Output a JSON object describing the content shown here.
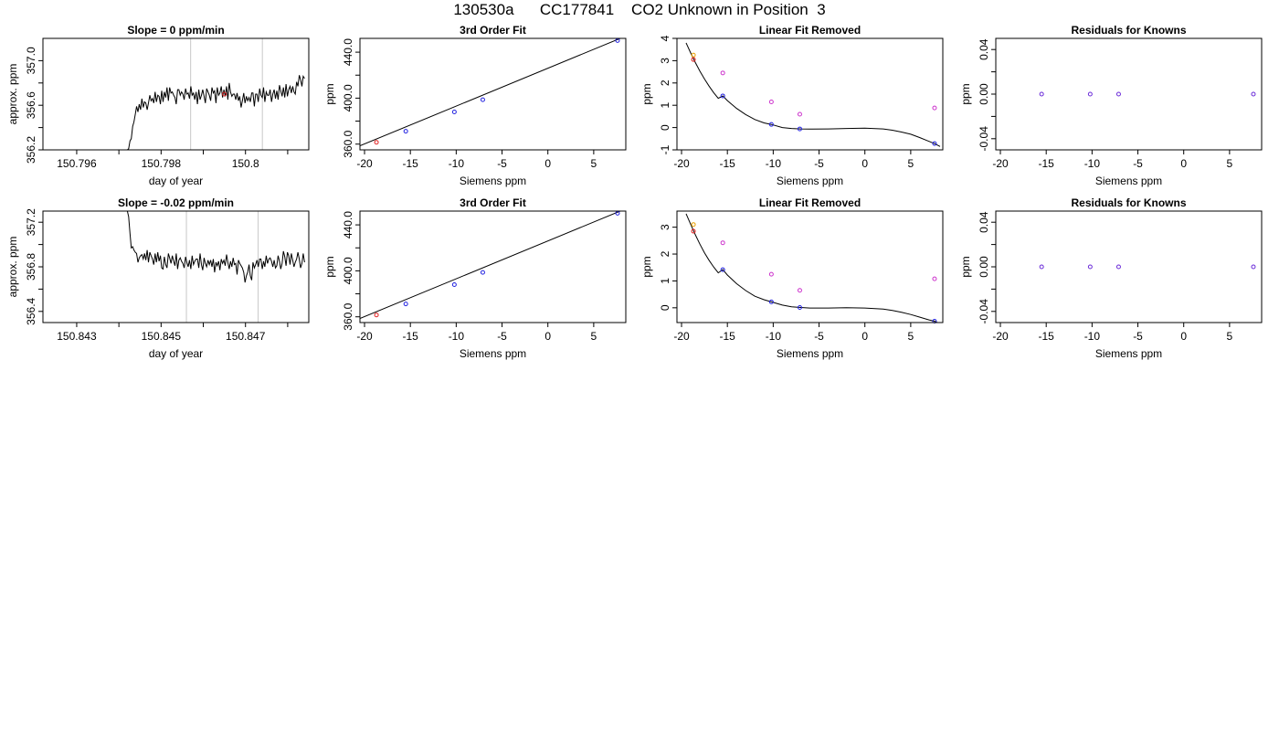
{
  "title": "130530a      CC177841    CO2 Unknown in Position  3",
  "chart_data": [
    {
      "type": "line",
      "panel": "time-series",
      "row": 0,
      "title": "Slope =  0  ppm/min",
      "xlabel": "day of year",
      "ylabel": "approx. ppm",
      "xlim": [
        150.7952,
        150.8015
      ],
      "ylim": [
        356.2,
        357.2
      ],
      "xticks": [
        150.796,
        150.798,
        150.8
      ],
      "xminor": [
        150.797,
        150.799,
        150.801
      ],
      "yticks": [
        356.2,
        356.6,
        357.0
      ],
      "yminor": [
        356.4,
        356.8
      ],
      "vlines": [
        150.7987,
        150.8004
      ],
      "marker": {
        "x": 150.7995,
        "y": 356.7,
        "color": "#e02020"
      },
      "series": [
        {
          "x_start": 150.7972,
          "x_end": 150.8014,
          "values": [
            356.2,
            356.21,
            356.28,
            356.3,
            356.41,
            356.45,
            356.52,
            356.59,
            356.54,
            356.61,
            356.56,
            356.66,
            356.58,
            356.63,
            356.62,
            356.56,
            356.62,
            356.69,
            356.64,
            356.66,
            356.62,
            356.72,
            356.63,
            356.69,
            356.68,
            356.61,
            356.73,
            356.63,
            356.72,
            356.67,
            356.76,
            356.64,
            356.76,
            356.71,
            356.72,
            356.69,
            356.67,
            356.61,
            356.74,
            356.74,
            356.69,
            356.72,
            356.7,
            356.65,
            356.75,
            356.7,
            356.71,
            356.66,
            356.77,
            356.69,
            356.71,
            356.65,
            356.72,
            356.61,
            356.74,
            356.65,
            356.69,
            356.74,
            356.68,
            356.62,
            356.75,
            356.72,
            356.69,
            356.64,
            356.76,
            356.71,
            356.73,
            356.62,
            356.76,
            356.69,
            356.71,
            356.77,
            356.67,
            356.74,
            356.68,
            356.77,
            356.65,
            356.8,
            356.72,
            356.68,
            356.7,
            356.7,
            356.65,
            356.71,
            356.64,
            356.68,
            356.58,
            356.64,
            356.71,
            356.62,
            356.68,
            356.64,
            356.67,
            356.63,
            356.71,
            356.71,
            356.59,
            356.7,
            356.7,
            356.63,
            356.75,
            356.69,
            356.67,
            356.76,
            356.63,
            356.72,
            356.69,
            356.69,
            356.74,
            356.63,
            356.7,
            356.74,
            356.66,
            356.73,
            356.65,
            356.78,
            356.73,
            356.68,
            356.76,
            356.67,
            356.79,
            356.68,
            356.74,
            356.77,
            356.71,
            356.77,
            356.72,
            356.7,
            356.81,
            356.77,
            356.87,
            356.83,
            356.77,
            356.86,
            356.84
          ]
        }
      ]
    },
    {
      "type": "scatter",
      "panel": "fit",
      "row": 0,
      "title": "3rd Order Fit",
      "xlabel": "Siemens ppm",
      "ylabel": "ppm",
      "xlim": [
        -20.5,
        8.5
      ],
      "ylim": [
        355,
        452
      ],
      "xticks": [
        -20,
        -15,
        -10,
        -5,
        0,
        5
      ],
      "yticks": [
        360,
        400,
        440
      ],
      "yminor": [
        380,
        420
      ],
      "fit": [
        [
          -20.5,
          358.5
        ],
        [
          8.5,
          454
        ]
      ],
      "points": [
        {
          "x": -18.7,
          "y": 361.6,
          "color": "#e02020"
        },
        {
          "x": -15.5,
          "y": 371.2,
          "color": "#2020e0"
        },
        {
          "x": -10.2,
          "y": 388.0,
          "color": "#2020e0"
        },
        {
          "x": -7.1,
          "y": 398.6,
          "color": "#2020e0"
        },
        {
          "x": 7.6,
          "y": 450.1,
          "color": "#2020e0"
        }
      ]
    },
    {
      "type": "scatter",
      "panel": "residual-curve",
      "row": 0,
      "title": "Linear Fit Removed",
      "xlabel": "Siemens ppm",
      "ylabel": "ppm",
      "xlim": [
        -20.5,
        8.5
      ],
      "ylim": [
        -1,
        4
      ],
      "xticks": [
        -20,
        -15,
        -10,
        -5,
        0,
        5
      ],
      "yticks": [
        -1,
        0,
        1,
        2,
        3,
        4
      ],
      "curve": [
        [
          -19.5,
          3.8
        ],
        [
          -19,
          3.34
        ],
        [
          -18.5,
          2.92
        ],
        [
          -18,
          2.53
        ],
        [
          -17.5,
          2.18
        ],
        [
          -17,
          1.86
        ],
        [
          -16.5,
          1.57
        ],
        [
          -16,
          1.31
        ],
        [
          -15.5,
          1.42
        ],
        [
          -15,
          1.21
        ],
        [
          -14,
          0.86
        ],
        [
          -13,
          0.58
        ],
        [
          -12,
          0.36
        ],
        [
          -11,
          0.21
        ],
        [
          -10.2,
          0.14
        ],
        [
          -9,
          0.0
        ],
        [
          -8,
          -0.04
        ],
        [
          -7,
          -0.06
        ],
        [
          -6,
          -0.07
        ],
        [
          -4,
          -0.06
        ],
        [
          -2,
          -0.04
        ],
        [
          0,
          -0.03
        ],
        [
          2,
          -0.06
        ],
        [
          3,
          -0.12
        ],
        [
          4,
          -0.2
        ],
        [
          5,
          -0.3
        ],
        [
          6,
          -0.45
        ],
        [
          7,
          -0.62
        ],
        [
          7.6,
          -0.72
        ],
        [
          8.2,
          -0.85
        ]
      ],
      "points": [
        {
          "x": -18.7,
          "y": 3.25,
          "color": "#e8a000"
        },
        {
          "x": -18.7,
          "y": 3.05,
          "color": "#e02020"
        },
        {
          "x": -15.5,
          "y": 2.45,
          "color": "#cc33cc"
        },
        {
          "x": -15.5,
          "y": 1.42,
          "color": "#2020e0"
        },
        {
          "x": -10.2,
          "y": 1.15,
          "color": "#cc33cc"
        },
        {
          "x": -10.2,
          "y": 0.14,
          "color": "#2020e0"
        },
        {
          "x": -7.1,
          "y": 0.6,
          "color": "#cc33cc"
        },
        {
          "x": -7.1,
          "y": -0.06,
          "color": "#2020e0"
        },
        {
          "x": 7.6,
          "y": 0.88,
          "color": "#cc33cc"
        },
        {
          "x": 7.6,
          "y": -0.72,
          "color": "#2020e0"
        }
      ]
    },
    {
      "type": "scatter",
      "panel": "residuals",
      "row": 0,
      "title": "Residuals for Knowns",
      "xlabel": "Siemens ppm",
      "ylabel": "ppm",
      "xlim": [
        -20.5,
        8.5
      ],
      "ylim": [
        -0.05,
        0.05
      ],
      "xticks": [
        -20,
        -15,
        -10,
        -5,
        0,
        5
      ],
      "yticks": [
        -0.04,
        0.0,
        0.04
      ],
      "yminor": [
        -0.02,
        0.02
      ],
      "yticklabels": [
        "-0.04",
        "0.00",
        "0.04"
      ],
      "points": [
        {
          "x": -15.5,
          "y": 0.0,
          "color": "#6a2ad8"
        },
        {
          "x": -10.2,
          "y": 0.0,
          "color": "#6a2ad8"
        },
        {
          "x": -7.1,
          "y": 0.0,
          "color": "#6a2ad8"
        },
        {
          "x": 7.6,
          "y": 0.0,
          "color": "#6a2ad8"
        }
      ]
    },
    {
      "type": "line",
      "panel": "time-series",
      "row": 1,
      "title": "Slope =  -0.02  ppm/min",
      "xlabel": "day of year",
      "ylabel": "approx. ppm",
      "xlim": [
        150.8422,
        150.8485
      ],
      "ylim": [
        356.3,
        357.3
      ],
      "xticks": [
        150.843,
        150.845,
        150.847
      ],
      "xminor": [
        150.844,
        150.846,
        150.848
      ],
      "yticks": [
        356.4,
        356.8,
        357.2
      ],
      "yminor": [
        356.6,
        357.0
      ],
      "vlines": [
        150.8456,
        150.8473
      ],
      "series": [
        {
          "x_start": 150.8442,
          "x_end": 150.8484,
          "values": [
            357.3,
            357.25,
            357.1,
            356.97,
            356.98,
            356.95,
            356.93,
            356.92,
            356.84,
            356.88,
            356.9,
            356.91,
            356.87,
            356.92,
            356.86,
            356.95,
            356.84,
            356.93,
            356.9,
            356.87,
            356.82,
            356.92,
            356.84,
            356.93,
            356.85,
            356.9,
            356.79,
            356.78,
            356.89,
            356.82,
            356.79,
            356.92,
            356.88,
            356.83,
            356.9,
            356.85,
            356.81,
            356.92,
            356.78,
            356.86,
            356.88,
            356.85,
            356.83,
            356.79,
            356.89,
            356.84,
            356.8,
            356.86,
            356.78,
            356.9,
            356.82,
            356.85,
            356.87,
            356.87,
            356.79,
            356.92,
            356.82,
            356.77,
            356.88,
            356.83,
            356.8,
            356.86,
            356.82,
            356.86,
            356.8,
            356.87,
            356.75,
            356.84,
            356.81,
            356.85,
            356.77,
            356.87,
            356.83,
            356.86,
            356.81,
            356.91,
            356.84,
            356.78,
            356.85,
            356.8,
            356.88,
            356.82,
            356.83,
            356.73,
            356.86,
            356.83,
            356.81,
            356.79,
            356.75,
            356.66,
            356.72,
            356.75,
            356.82,
            356.72,
            356.68,
            356.84,
            356.79,
            356.82,
            356.86,
            356.8,
            356.87,
            356.87,
            356.78,
            356.85,
            356.8,
            356.9,
            356.83,
            356.87,
            356.88,
            356.85,
            356.8,
            356.86,
            356.79,
            356.81,
            356.9,
            356.85,
            356.78,
            356.83,
            356.94,
            356.89,
            356.81,
            356.93,
            356.9,
            356.82,
            356.92,
            356.86,
            356.8,
            356.84,
            356.87,
            356.93,
            356.87,
            356.79,
            356.83,
            356.92,
            356.84
          ]
        }
      ]
    },
    {
      "type": "scatter",
      "panel": "fit",
      "row": 1,
      "title": "3rd Order Fit",
      "xlabel": "Siemens ppm",
      "ylabel": "ppm",
      "xlim": [
        -20.5,
        8.5
      ],
      "ylim": [
        355,
        452
      ],
      "xticks": [
        -20,
        -15,
        -10,
        -5,
        0,
        5
      ],
      "yticks": [
        360,
        400,
        440
      ],
      "yminor": [
        380,
        420
      ],
      "fit": [
        [
          -20.5,
          358.5
        ],
        [
          8.5,
          454
        ]
      ],
      "points": [
        {
          "x": -18.7,
          "y": 361.6,
          "color": "#e02020"
        },
        {
          "x": -15.5,
          "y": 371.2,
          "color": "#2020e0"
        },
        {
          "x": -10.2,
          "y": 388.0,
          "color": "#2020e0"
        },
        {
          "x": -7.1,
          "y": 398.6,
          "color": "#2020e0"
        },
        {
          "x": 7.6,
          "y": 450.1,
          "color": "#2020e0"
        }
      ]
    },
    {
      "type": "scatter",
      "panel": "residual-curve",
      "row": 1,
      "title": "Linear Fit Removed",
      "xlabel": "Siemens ppm",
      "ylabel": "ppm",
      "xlim": [
        -20.5,
        8.5
      ],
      "ylim": [
        -0.55,
        3.6
      ],
      "xticks": [
        -20,
        -15,
        -10,
        -5,
        0,
        5
      ],
      "yticks": [
        0,
        1,
        2,
        3
      ],
      "curve": [
        [
          -19.5,
          3.5
        ],
        [
          -19,
          3.1
        ],
        [
          -18.5,
          2.72
        ],
        [
          -18,
          2.37
        ],
        [
          -17.5,
          2.05
        ],
        [
          -17,
          1.77
        ],
        [
          -16.5,
          1.52
        ],
        [
          -16,
          1.3
        ],
        [
          -15.5,
          1.42
        ],
        [
          -15,
          1.22
        ],
        [
          -14,
          0.9
        ],
        [
          -13,
          0.64
        ],
        [
          -12,
          0.43
        ],
        [
          -11,
          0.3
        ],
        [
          -10.2,
          0.22
        ],
        [
          -9,
          0.1
        ],
        [
          -8,
          0.04
        ],
        [
          -7,
          0.01
        ],
        [
          -6,
          -0.01
        ],
        [
          -4,
          -0.01
        ],
        [
          -2,
          0.0
        ],
        [
          0,
          -0.01
        ],
        [
          2,
          -0.05
        ],
        [
          3,
          -0.1
        ],
        [
          4,
          -0.17
        ],
        [
          5,
          -0.25
        ],
        [
          6,
          -0.35
        ],
        [
          7,
          -0.45
        ],
        [
          7.6,
          -0.5
        ],
        [
          8.2,
          -0.6
        ]
      ],
      "points": [
        {
          "x": -18.7,
          "y": 3.1,
          "color": "#e8a000"
        },
        {
          "x": -18.7,
          "y": 2.85,
          "color": "#e02020"
        },
        {
          "x": -15.5,
          "y": 2.42,
          "color": "#cc33cc"
        },
        {
          "x": -15.5,
          "y": 1.42,
          "color": "#2020e0"
        },
        {
          "x": -10.2,
          "y": 1.25,
          "color": "#cc33cc"
        },
        {
          "x": -10.2,
          "y": 0.22,
          "color": "#2020e0"
        },
        {
          "x": -7.1,
          "y": 0.65,
          "color": "#cc33cc"
        },
        {
          "x": -7.1,
          "y": 0.01,
          "color": "#2020e0"
        },
        {
          "x": 7.6,
          "y": 1.08,
          "color": "#cc33cc"
        },
        {
          "x": 7.6,
          "y": -0.5,
          "color": "#2020e0"
        }
      ]
    },
    {
      "type": "scatter",
      "panel": "residuals",
      "row": 1,
      "title": "Residuals for Knowns",
      "xlabel": "Siemens ppm",
      "ylabel": "ppm",
      "xlim": [
        -20.5,
        8.5
      ],
      "ylim": [
        -0.05,
        0.05
      ],
      "xticks": [
        -20,
        -15,
        -10,
        -5,
        0,
        5
      ],
      "yticks": [
        -0.04,
        0.0,
        0.04
      ],
      "yminor": [
        -0.02,
        0.02
      ],
      "yticklabels": [
        "-0.04",
        "0.00",
        "0.04"
      ],
      "points": [
        {
          "x": -15.5,
          "y": 0.0,
          "color": "#6a2ad8"
        },
        {
          "x": -10.2,
          "y": 0.0,
          "color": "#6a2ad8"
        },
        {
          "x": -7.1,
          "y": 0.0,
          "color": "#6a2ad8"
        },
        {
          "x": 7.6,
          "y": 0.0,
          "color": "#6a2ad8"
        }
      ]
    }
  ]
}
